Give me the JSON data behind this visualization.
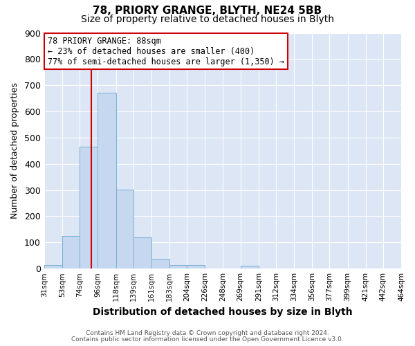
{
  "title": "78, PRIORY GRANGE, BLYTH, NE24 5BB",
  "subtitle": "Size of property relative to detached houses in Blyth",
  "xlabel": "Distribution of detached houses by size in Blyth",
  "ylabel": "Number of detached properties",
  "bar_edges": [
    31,
    53,
    74,
    96,
    118,
    139,
    161,
    183,
    204,
    226,
    248,
    269,
    291,
    312,
    334,
    356,
    377,
    399,
    421,
    442,
    464
  ],
  "bar_heights": [
    15,
    125,
    465,
    672,
    302,
    120,
    37,
    13,
    13,
    0,
    0,
    10,
    0,
    0,
    0,
    0,
    0,
    0,
    0,
    0
  ],
  "bar_color": "#c5d8f0",
  "bar_edge_color": "#7bafd4",
  "vline_x": 88,
  "vline_color": "#cc0000",
  "annotation_title": "78 PRIORY GRANGE: 88sqm",
  "annotation_line1": "← 23% of detached houses are smaller (400)",
  "annotation_line2": "77% of semi-detached houses are larger (1,350) →",
  "annotation_box_color": "#cc0000",
  "ylim": [
    0,
    900
  ],
  "yticks": [
    0,
    100,
    200,
    300,
    400,
    500,
    600,
    700,
    800,
    900
  ],
  "tick_labels": [
    "31sqm",
    "53sqm",
    "74sqm",
    "96sqm",
    "118sqm",
    "139sqm",
    "161sqm",
    "183sqm",
    "204sqm",
    "226sqm",
    "248sqm",
    "269sqm",
    "291sqm",
    "312sqm",
    "334sqm",
    "356sqm",
    "377sqm",
    "399sqm",
    "421sqm",
    "442sqm",
    "464sqm"
  ],
  "footer1": "Contains HM Land Registry data © Crown copyright and database right 2024.",
  "footer2": "Contains public sector information licensed under the Open Government Licence v3.0.",
  "fig_bg": "#ffffff",
  "plot_bg": "#dce6f5",
  "grid_color": "#ffffff",
  "title_fontsize": 11,
  "subtitle_fontsize": 10,
  "annotation_fontsize": 8.5
}
